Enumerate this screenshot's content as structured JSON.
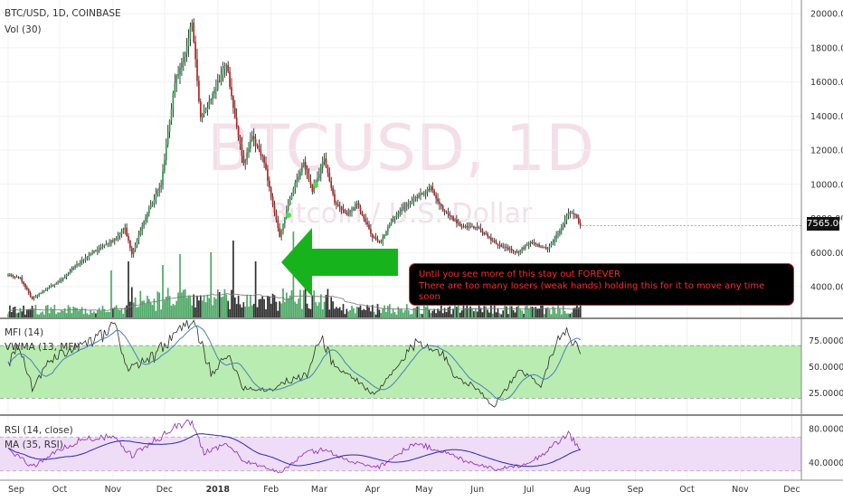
{
  "header": {
    "symbol": "BTC/USD, 1D, COINBASE",
    "volume_label": "Vol (30)"
  },
  "watermark": {
    "line1": "BTCUSD, 1D",
    "line2": "Bitcoin / U.S. Dollar"
  },
  "annotation": {
    "line1": "Until you see more of this stay out FOREVER",
    "line2": "There are too many losers (weak hands) holding this for it to move any time soon"
  },
  "price_tag": "7565.00",
  "colors": {
    "up": "#2f9a4c",
    "down": "#c2201f",
    "wick": "#111111",
    "arrow": "#17b31c",
    "callout_bg": "#000000",
    "callout_text": "#ff2a2a",
    "mfi_band": "#b9ecb0",
    "mfi_line": "#2b2b2b",
    "vwma_line": "#4a7fb8",
    "rsi_band": "#efdcf7",
    "rsi_line": "#8a28b8",
    "rsi_ma_line": "#2a2ab0"
  },
  "chart_data": [
    {
      "type": "candlestick",
      "title": "BTC/USD, 1D, COINBASE",
      "x": [
        "Sep",
        "Oct",
        "Nov",
        "Dec",
        "2018",
        "Feb",
        "Mar",
        "Apr",
        "May",
        "Jun",
        "Jul",
        "Aug",
        "Sep",
        "Oct",
        "Nov",
        "Dec"
      ],
      "y_ticks": [
        "20000.00",
        "18000.00",
        "16000.00",
        "14000.00",
        "12000.00",
        "10000.00",
        "8000.00",
        "6000.00",
        "4000.00"
      ],
      "ylim": [
        2200,
        20800
      ],
      "anchors": [
        [
          "2017-09-01",
          4700
        ],
        [
          "2017-09-08",
          4500
        ],
        [
          "2017-09-15",
          3300
        ],
        [
          "2017-09-22",
          3800
        ],
        [
          "2017-10-01",
          4300
        ],
        [
          "2017-10-12",
          5400
        ],
        [
          "2017-10-20",
          6000
        ],
        [
          "2017-11-01",
          6700
        ],
        [
          "2017-11-08",
          7400
        ],
        [
          "2017-11-12",
          5900
        ],
        [
          "2017-11-20",
          8100
        ],
        [
          "2017-11-29",
          10000
        ],
        [
          "2017-12-07",
          16000
        ],
        [
          "2017-12-11",
          17000
        ],
        [
          "2017-12-17",
          19500
        ],
        [
          "2017-12-22",
          13800
        ],
        [
          "2017-12-28",
          15000
        ],
        [
          "2018-01-06",
          17100
        ],
        [
          "2018-01-10",
          14500
        ],
        [
          "2018-01-16",
          11200
        ],
        [
          "2018-01-21",
          12800
        ],
        [
          "2018-01-28",
          11300
        ],
        [
          "2018-02-02",
          8800
        ],
        [
          "2018-02-06",
          6900
        ],
        [
          "2018-02-10",
          8500
        ],
        [
          "2018-02-15",
          10000
        ],
        [
          "2018-02-20",
          11300
        ],
        [
          "2018-02-25",
          9600
        ],
        [
          "2018-03-04",
          11500
        ],
        [
          "2018-03-10",
          9000
        ],
        [
          "2018-03-17",
          8200
        ],
        [
          "2018-03-23",
          8900
        ],
        [
          "2018-04-01",
          6900
        ],
        [
          "2018-04-06",
          6600
        ],
        [
          "2018-04-12",
          7900
        ],
        [
          "2018-04-22",
          8900
        ],
        [
          "2018-05-05",
          9800
        ],
        [
          "2018-05-12",
          8500
        ],
        [
          "2018-05-23",
          7500
        ],
        [
          "2018-06-01",
          7500
        ],
        [
          "2018-06-12",
          6500
        ],
        [
          "2018-06-24",
          6000
        ],
        [
          "2018-07-02",
          6600
        ],
        [
          "2018-07-12",
          6200
        ],
        [
          "2018-07-19",
          7300
        ],
        [
          "2018-07-24",
          8300
        ],
        [
          "2018-07-28",
          8200
        ],
        [
          "2018-07-31",
          7565
        ]
      ],
      "last_price": 7565
    },
    {
      "type": "bar",
      "title": "Vol (30)",
      "note": "daily volume bars with moving-average line"
    },
    {
      "type": "line",
      "title": "MFI (14)",
      "series": [
        {
          "name": "MFI (14)"
        },
        {
          "name": "VWMA (13, MFI)"
        }
      ],
      "y_ticks": [
        "75.0000",
        "50.0000",
        "25.0000"
      ],
      "band": [
        20,
        70
      ],
      "ylim": [
        5,
        95
      ],
      "anchors": [
        [
          "2017-09-01",
          52
        ],
        [
          "2017-09-07",
          70
        ],
        [
          "2017-09-15",
          30
        ],
        [
          "2017-09-25",
          55
        ],
        [
          "2017-10-10",
          68
        ],
        [
          "2017-10-22",
          75
        ],
        [
          "2017-11-02",
          88
        ],
        [
          "2017-11-10",
          48
        ],
        [
          "2017-11-25",
          60
        ],
        [
          "2017-12-10",
          85
        ],
        [
          "2017-12-18",
          92
        ],
        [
          "2017-12-28",
          45
        ],
        [
          "2018-01-08",
          60
        ],
        [
          "2018-01-16",
          30
        ],
        [
          "2018-02-01",
          28
        ],
        [
          "2018-02-08",
          35
        ],
        [
          "2018-02-22",
          42
        ],
        [
          "2018-03-02",
          80
        ],
        [
          "2018-03-10",
          50
        ],
        [
          "2018-03-25",
          35
        ],
        [
          "2018-04-02",
          22
        ],
        [
          "2018-04-18",
          55
        ],
        [
          "2018-04-26",
          72
        ],
        [
          "2018-05-08",
          70
        ],
        [
          "2018-05-20",
          40
        ],
        [
          "2018-06-01",
          30
        ],
        [
          "2018-06-10",
          12
        ],
        [
          "2018-06-25",
          45
        ],
        [
          "2018-07-08",
          35
        ],
        [
          "2018-07-20",
          85
        ],
        [
          "2018-07-28",
          72
        ],
        [
          "2018-07-31",
          62
        ]
      ]
    },
    {
      "type": "line",
      "title": "RSI (14, close)",
      "series": [
        {
          "name": "RSI (14, close)"
        },
        {
          "name": "MA (35, RSI)"
        }
      ],
      "y_ticks": [
        "80.0000",
        "40.0000"
      ],
      "band": [
        30,
        70
      ],
      "ylim": [
        20,
        95
      ],
      "anchors": [
        [
          "2017-09-01",
          55
        ],
        [
          "2017-09-15",
          35
        ],
        [
          "2017-10-01",
          55
        ],
        [
          "2017-10-15",
          68
        ],
        [
          "2017-11-01",
          70
        ],
        [
          "2017-11-12",
          48
        ],
        [
          "2017-11-25",
          65
        ],
        [
          "2017-12-07",
          82
        ],
        [
          "2017-12-17",
          88
        ],
        [
          "2017-12-24",
          52
        ],
        [
          "2018-01-06",
          62
        ],
        [
          "2018-01-16",
          42
        ],
        [
          "2018-02-06",
          28
        ],
        [
          "2018-02-22",
          52
        ],
        [
          "2018-03-05",
          55
        ],
        [
          "2018-03-20",
          40
        ],
        [
          "2018-04-05",
          35
        ],
        [
          "2018-04-25",
          62
        ],
        [
          "2018-05-08",
          56
        ],
        [
          "2018-05-25",
          42
        ],
        [
          "2018-06-12",
          32
        ],
        [
          "2018-06-25",
          36
        ],
        [
          "2018-07-05",
          44
        ],
        [
          "2018-07-24",
          74
        ],
        [
          "2018-07-31",
          55
        ]
      ]
    }
  ]
}
